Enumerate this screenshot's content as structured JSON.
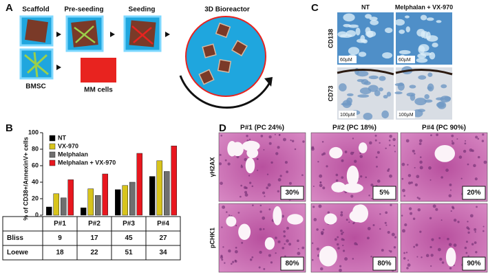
{
  "panel_a": {
    "letter": "A",
    "scaffold": "Scaffold",
    "pre_seeding": "Pre-seeding",
    "seeding": "Seeding",
    "bioreactor": "3D Bioreactor",
    "bmsc": "BMSC",
    "mm_cells": "MM cells"
  },
  "panel_b": {
    "letter": "B",
    "chart_data": {
      "type": "bar",
      "y_label": "% of CD38+/AnnexinV+ cells",
      "categories": [
        "P#1",
        "P#2",
        "P#3",
        "P#4"
      ],
      "series": [
        {
          "name": "NT",
          "color": "#000000",
          "values": [
            10,
            9,
            31,
            47
          ]
        },
        {
          "name": "VX-970",
          "color": "#d8c41c",
          "values": [
            26,
            32,
            36,
            66
          ]
        },
        {
          "name": "Melphalan",
          "color": "#6f6f6f",
          "values": [
            21,
            24,
            40,
            53
          ]
        },
        {
          "name": "Melphalan + VX-970",
          "color": "#e8171f",
          "values": [
            43,
            50,
            75,
            84
          ]
        }
      ],
      "ylim": [
        0,
        100
      ],
      "yticks": [
        0,
        20,
        40,
        60,
        80,
        100
      ],
      "legend": "upper-left"
    },
    "table": {
      "rows": [
        [
          "Bliss",
          "9",
          "17",
          "45",
          "27"
        ],
        [
          "Loewe",
          "18",
          "22",
          "51",
          "34"
        ]
      ]
    }
  },
  "panel_c": {
    "letter": "C",
    "columns": [
      "NT",
      "Melphalan + VX-970"
    ],
    "rows": [
      "CD138",
      "CD73"
    ],
    "scale_bars": [
      [
        "60µM",
        "60µM"
      ],
      [
        "100µM",
        "100µM"
      ]
    ]
  },
  "panel_d": {
    "letter": "D",
    "columns": [
      "P#1 (PC  24%)",
      "P#2 (PC  18%)",
      "P#4 (PC  90%)"
    ],
    "rows": [
      "γH2AX",
      "pCHK1"
    ],
    "percents": [
      [
        "30%",
        "5%",
        "20%"
      ],
      [
        "80%",
        "80%",
        "90%"
      ]
    ]
  }
}
